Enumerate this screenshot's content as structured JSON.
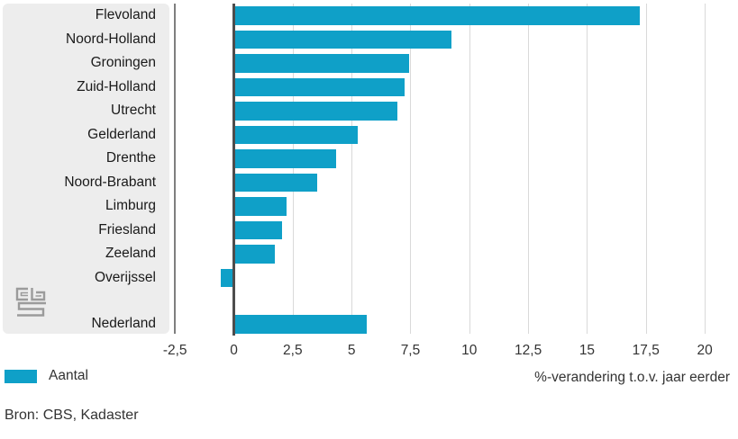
{
  "chart_data": {
    "type": "bar",
    "orientation": "horizontal",
    "title": "",
    "categories": [
      "Flevoland",
      "Noord-Holland",
      "Groningen",
      "Zuid-Holland",
      "Utrecht",
      "Gelderland",
      "Drenthe",
      "Noord-Brabant",
      "Limburg",
      "Friesland",
      "Zeeland",
      "Overijssel",
      "Nederland"
    ],
    "values": [
      17.2,
      9.2,
      7.4,
      7.2,
      6.9,
      5.2,
      4.3,
      3.5,
      2.2,
      2.0,
      1.7,
      -0.5,
      5.6
    ],
    "last_row_separated": true,
    "xlabel": "%-verandering t.o.v. jaar eerder",
    "ylabel": "",
    "xlim": [
      -2.5,
      20
    ],
    "xticks": [
      -2.5,
      0,
      2.5,
      5,
      7.5,
      10,
      12.5,
      15,
      17.5,
      20
    ],
    "xtick_labels": [
      "-2,5",
      "0",
      "2,5",
      "5",
      "7,5",
      "10",
      "12,5",
      "15",
      "17,5",
      "20"
    ],
    "grid": true,
    "legend_position": "bottom-left",
    "legend": [
      {
        "label": "Aantal",
        "color": "#0fa0c8"
      }
    ],
    "bar_color": "#0fa0c8"
  },
  "source": "Bron: CBS, Kadaster",
  "logo_name": "cbs-logo",
  "colors": {
    "bar": "#0fa0c8",
    "label_panel": "#ededed",
    "gridline": "#d9d9d9",
    "zero_line": "#4d4d4d",
    "category_axis": "#7f7f7f",
    "logo": "#9b9b9b",
    "text": "#333333"
  }
}
